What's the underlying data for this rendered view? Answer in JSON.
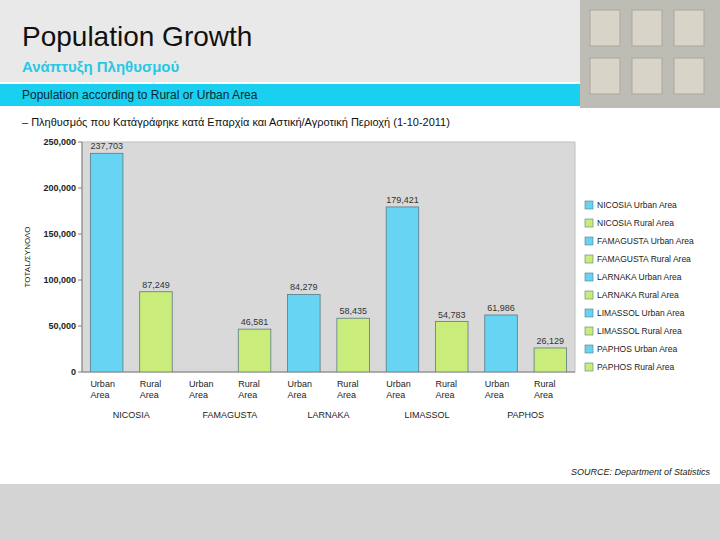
{
  "chart_data": {
    "type": "bar",
    "title": "Population Growth",
    "subtitle": "Ανάπτυξη Πληθυσμού",
    "banner": "Population according to Rural or Urban Area",
    "caption": "– Πληθυσμός που Κατάγράφηκε κατά Επαρχία και Αστική/Αγροτική Περιοχή (1-10-2011)",
    "y_label": "TOTAL/ΣΥΝΟΛΟ",
    "source": "SOURCE: Department of Statistics",
    "categories": [
      "Urban Area",
      "Rural Area",
      "Urban Area",
      "Rural Area",
      "Urban Area",
      "Rural Area",
      "Urban Area",
      "Rural Area",
      "Urban Area",
      "Rural Area"
    ],
    "groups": [
      "NICOSIA",
      "FAMAGUSTA",
      "LARNAKA",
      "LIMASSOL",
      "PAPHOS"
    ],
    "series": [
      {
        "name": "NICOSIA Urban Area",
        "color": "#66d4f2",
        "values": [
          237703,
          null,
          null,
          null,
          null,
          null,
          null,
          null,
          null,
          null
        ],
        "value_labels": [
          "237,703",
          null,
          null,
          null,
          null,
          null,
          null,
          null,
          null,
          null
        ]
      },
      {
        "name": "NICOSIA Rural Area",
        "color": "#c9ec7a",
        "values": [
          null,
          87249,
          null,
          null,
          null,
          null,
          null,
          null,
          null,
          null
        ],
        "value_labels": [
          null,
          "87,249",
          null,
          null,
          null,
          null,
          null,
          null,
          null,
          null
        ]
      },
      {
        "name": "FAMAGUSTA Urban Area",
        "color": "#66d4f2",
        "values": [
          null,
          null,
          null,
          null,
          null,
          null,
          null,
          null,
          null,
          null
        ],
        "value_labels": [
          null,
          null,
          null,
          null,
          null,
          null,
          null,
          null,
          null,
          null
        ]
      },
      {
        "name": "FAMAGUSTA Rural Area",
        "color": "#c9ec7a",
        "values": [
          null,
          null,
          null,
          46581,
          null,
          null,
          null,
          null,
          null,
          null
        ],
        "value_labels": [
          null,
          null,
          null,
          "46,581",
          null,
          null,
          null,
          null,
          null,
          null
        ]
      },
      {
        "name": "LARNAKA Urban Area",
        "color": "#66d4f2",
        "values": [
          null,
          null,
          null,
          null,
          84279,
          null,
          null,
          null,
          null,
          null
        ],
        "value_labels": [
          null,
          null,
          null,
          null,
          "84,279",
          null,
          null,
          null,
          null,
          null
        ]
      },
      {
        "name": "LARNAKA Rural Area",
        "color": "#c9ec7a",
        "values": [
          null,
          null,
          null,
          null,
          null,
          58435,
          null,
          null,
          null,
          null
        ],
        "value_labels": [
          null,
          null,
          null,
          null,
          null,
          "58,435",
          null,
          null,
          null,
          null
        ]
      },
      {
        "name": "LIMASSOL Urban Area",
        "color": "#66d4f2",
        "values": [
          null,
          null,
          null,
          null,
          null,
          null,
          179421,
          null,
          null,
          null
        ],
        "value_labels": [
          null,
          null,
          null,
          null,
          null,
          null,
          "179,421",
          null,
          null,
          null
        ]
      },
      {
        "name": "LIMASSOL Rural Area",
        "color": "#c9ec7a",
        "values": [
          null,
          null,
          null,
          null,
          null,
          null,
          null,
          54783,
          null,
          null
        ],
        "value_labels": [
          null,
          null,
          null,
          null,
          null,
          null,
          null,
          "54,783",
          null,
          null
        ]
      },
      {
        "name": "PAPHOS Urban Area",
        "color": "#66d4f2",
        "values": [
          null,
          null,
          null,
          null,
          null,
          null,
          null,
          null,
          61986,
          null
        ],
        "value_labels": [
          null,
          null,
          null,
          null,
          null,
          null,
          null,
          null,
          "61,986",
          null
        ]
      },
      {
        "name": "PAPHOS Rural Area",
        "color": "#c9ec7a",
        "values": [
          null,
          null,
          null,
          null,
          null,
          null,
          null,
          null,
          null,
          26129
        ],
        "value_labels": [
          null,
          null,
          null,
          null,
          null,
          null,
          null,
          null,
          null,
          "26,129"
        ]
      }
    ],
    "ylim": [
      0,
      250000
    ],
    "yticks": [
      0,
      {
        "value": 50000,
        "label": "50,000"
      },
      {
        "value": 100000,
        "label": "100,000"
      },
      {
        "value": 150000,
        "label": "150,000"
      },
      {
        "value": 200000,
        "label": "200,000"
      },
      {
        "value": 250000,
        "label": "250,000"
      }
    ],
    "grid": false,
    "legend": "right",
    "data_labels": true
  }
}
